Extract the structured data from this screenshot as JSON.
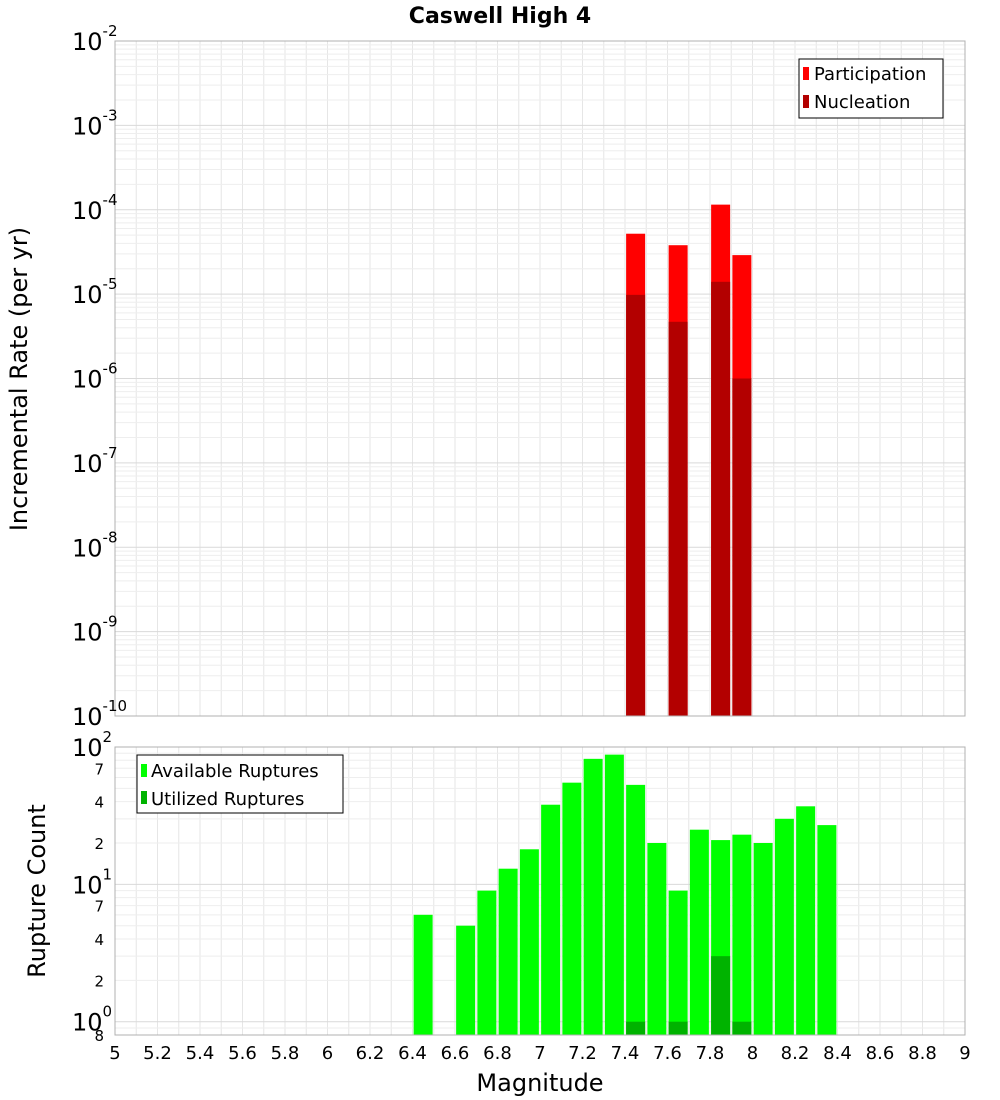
{
  "chart_data": [
    {
      "type": "bar",
      "title": "Caswell High 4",
      "xlabel": "",
      "ylabel": "Incremental Rate (per yr)",
      "xlim": [
        5,
        9
      ],
      "ylim": [
        1e-10,
        0.01
      ],
      "yscale": "log",
      "grid": true,
      "legend_position": "top-right",
      "yticks": [
        {
          "base": "10",
          "exp": "-2",
          "value": 0.01
        },
        {
          "base": "10",
          "exp": "-3",
          "value": 0.001
        },
        {
          "base": "10",
          "exp": "-4",
          "value": 0.0001
        },
        {
          "base": "10",
          "exp": "-5",
          "value": 1e-05
        },
        {
          "base": "10",
          "exp": "-6",
          "value": 1e-06
        },
        {
          "base": "10",
          "exp": "-7",
          "value": 1e-07
        },
        {
          "base": "10",
          "exp": "-8",
          "value": 1e-08
        },
        {
          "base": "10",
          "exp": "-9",
          "value": 1e-09
        },
        {
          "base": "10",
          "exp": "-10",
          "value": 1e-10
        }
      ],
      "series": [
        {
          "name": "Participation",
          "color": "#ff0000",
          "x": [
            7.45,
            7.65,
            7.85,
            7.95
          ],
          "values": [
            5.2e-05,
            3.8e-05,
            0.000115,
            2.9e-05
          ]
        },
        {
          "name": "Nucleation",
          "color": "#b30000",
          "x": [
            7.45,
            7.65,
            7.85,
            7.95
          ],
          "values": [
            9.8e-06,
            4.7e-06,
            1.4e-05,
            1e-06
          ]
        }
      ]
    },
    {
      "type": "bar",
      "title": "",
      "xlabel": "Magnitude",
      "ylabel": "Rupture Count",
      "xlim": [
        5,
        9
      ],
      "ylim": [
        0.8,
        100
      ],
      "yscale": "log",
      "grid": true,
      "legend_position": "top-left",
      "xticks": [
        "5",
        "5.2",
        "5.4",
        "5.6",
        "5.8",
        "6",
        "6.2",
        "6.4",
        "6.6",
        "6.8",
        "7",
        "7.2",
        "7.4",
        "7.6",
        "7.8",
        "8",
        "8.2",
        "8.4",
        "8.6",
        "8.8",
        "9"
      ],
      "yticks": [
        {
          "base": "10",
          "exp": "2",
          "value": 100,
          "major": true
        },
        {
          "label": "7",
          "value": 70
        },
        {
          "label": "4",
          "value": 40
        },
        {
          "label": "2",
          "value": 20
        },
        {
          "base": "10",
          "exp": "1",
          "value": 10,
          "major": true
        },
        {
          "label": "7",
          "value": 7
        },
        {
          "label": "4",
          "value": 4
        },
        {
          "label": "2",
          "value": 2
        },
        {
          "base": "10",
          "exp": "0",
          "value": 1,
          "major": true
        },
        {
          "label": "8",
          "value": 0.8
        }
      ],
      "series": [
        {
          "name": "Available Ruptures",
          "color": "#00ff00",
          "x": [
            6.45,
            6.65,
            6.75,
            6.85,
            6.95,
            7.05,
            7.15,
            7.25,
            7.35,
            7.45,
            7.55,
            7.65,
            7.75,
            7.85,
            7.95,
            8.05,
            8.15,
            8.25,
            8.35
          ],
          "values": [
            6,
            5,
            9,
            13,
            18,
            38,
            55,
            82,
            88,
            53,
            20,
            9,
            25,
            21,
            23,
            20,
            30,
            37,
            27
          ]
        },
        {
          "name": "Utilized Ruptures",
          "color": "#00b300",
          "x": [
            7.45,
            7.65,
            7.85,
            7.95
          ],
          "values": [
            1,
            1,
            3,
            1
          ]
        }
      ]
    }
  ]
}
